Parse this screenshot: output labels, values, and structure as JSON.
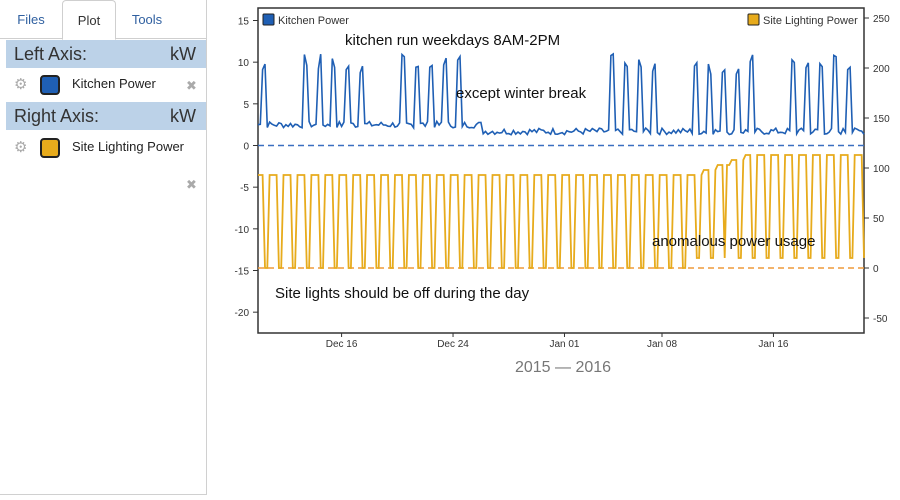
{
  "tabs": [
    {
      "label": "Files"
    },
    {
      "label": "Plot"
    },
    {
      "label": "Tools"
    }
  ],
  "left_axis": {
    "label": "Left Axis:",
    "unit": "kW",
    "series_name": "Kitchen Power",
    "color": "#1f5fb4",
    "settings_icon": "gear-icon",
    "remove_icon": "close-icon"
  },
  "right_axis": {
    "label": "Right Axis:",
    "unit": "kW",
    "series_name": "Site Lighting Power",
    "color": "#e7ab1c",
    "settings_icon": "gear-icon",
    "remove_icon": "close-icon"
  },
  "chart_data": {
    "type": "line",
    "title": "",
    "xlabel": "2015 — 2016",
    "x_ticks": [
      "Dec 16",
      "Dec 24",
      "Jan 01",
      "Jan 08",
      "Jan 16"
    ],
    "y_left": {
      "ticks": [
        15,
        10,
        5,
        0,
        -5,
        -10,
        -15,
        -20
      ],
      "range": [
        -22.5,
        16.5
      ]
    },
    "y_right": {
      "ticks": [
        250,
        200,
        150,
        100,
        50,
        0,
        -50
      ],
      "range": [
        -65,
        260
      ]
    },
    "legend": {
      "left": "Kitchen Power",
      "right": "Site Lighting Power",
      "placement": "top"
    },
    "series": [
      {
        "name": "Kitchen Power",
        "axis": "left",
        "color": "#1f5fb4",
        "baseline": 1.7,
        "weekday_peak": 10,
        "dashed_zero": 0
      },
      {
        "name": "Site Lighting Power",
        "axis": "right",
        "color": "#e7ab1c",
        "baseline": 0,
        "night_level": 93,
        "dashed_zero": 0
      }
    ],
    "annotations": [
      {
        "text": "kitchen run weekdays 8AM-2PM"
      },
      {
        "text": "except winter break"
      },
      {
        "text": "anomalous power usage"
      },
      {
        "text": "Site lights should be off during the day"
      }
    ]
  }
}
